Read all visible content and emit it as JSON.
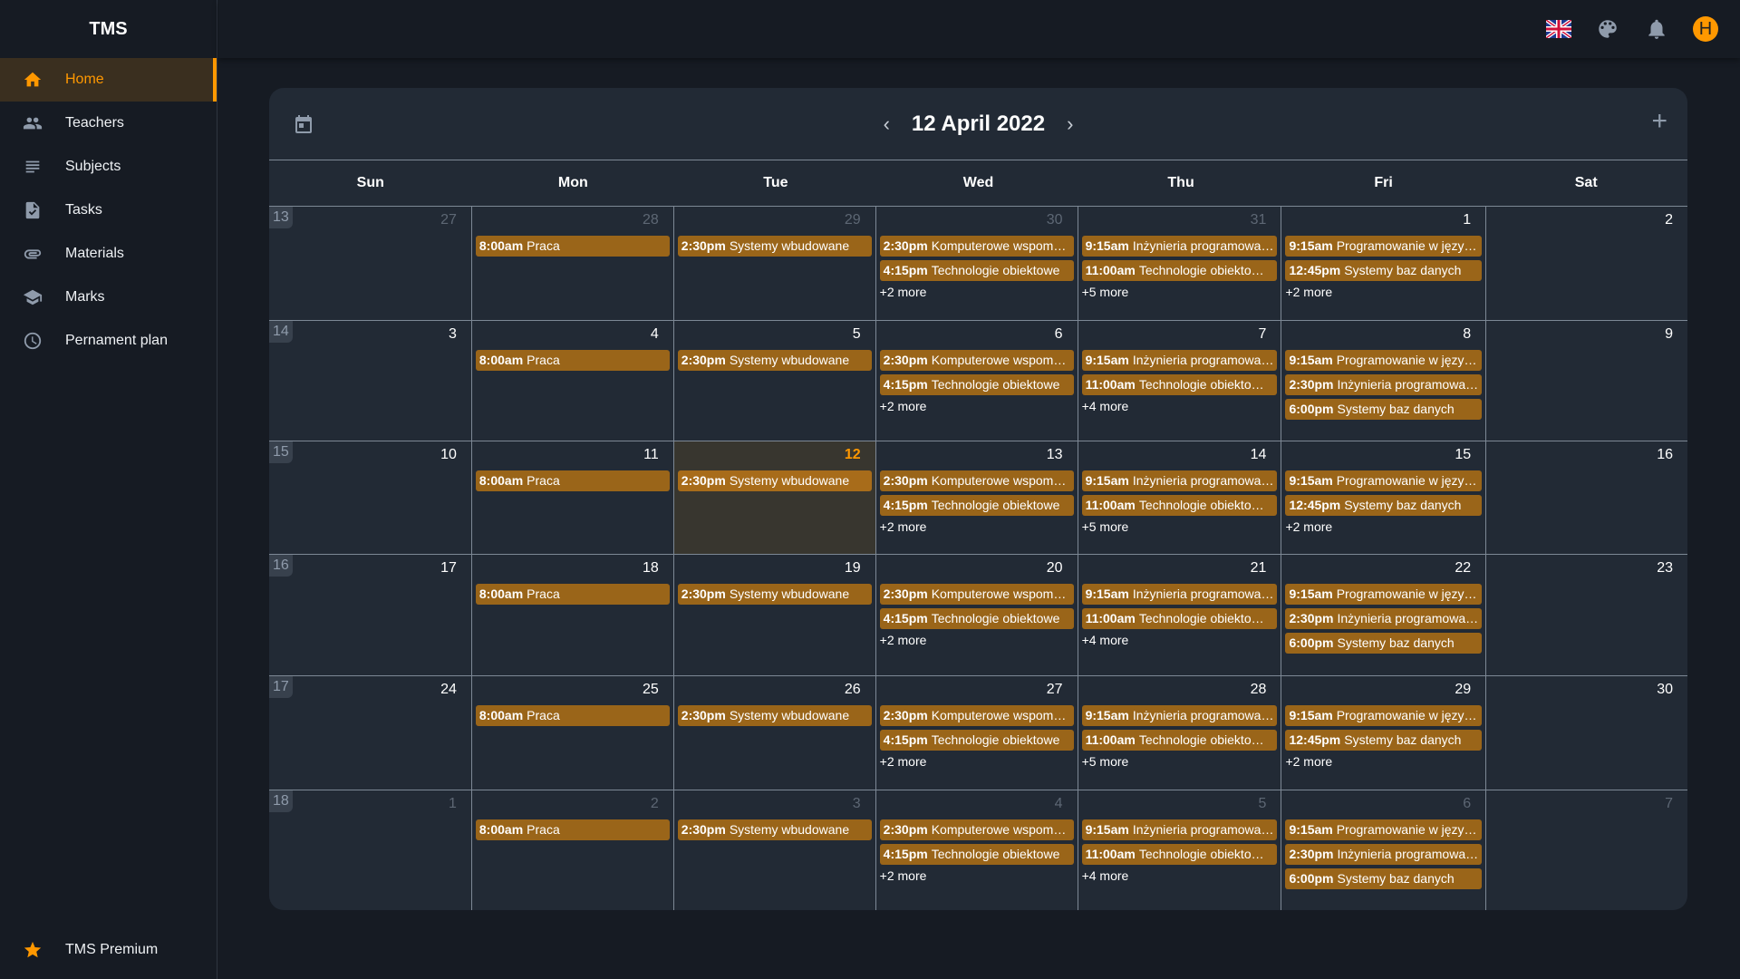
{
  "app": {
    "title": "TMS"
  },
  "sidebar": {
    "items": [
      {
        "label": "Home",
        "icon": "home-icon",
        "active": true
      },
      {
        "label": "Teachers",
        "icon": "people-icon"
      },
      {
        "label": "Subjects",
        "icon": "subject-lines-icon"
      },
      {
        "label": "Tasks",
        "icon": "task-file-icon"
      },
      {
        "label": "Materials",
        "icon": "paperclip-icon"
      },
      {
        "label": "Marks",
        "icon": "graduation-cap-icon"
      },
      {
        "label": "Pernament plan",
        "icon": "clock-icon"
      }
    ],
    "premium": {
      "label": "TMS Premium",
      "icon": "star-icon"
    }
  },
  "topbar": {
    "language": "EN",
    "avatar_initial": "H",
    "accent": "#ff9800"
  },
  "calendar": {
    "title": "12 April 2022",
    "weekdays": [
      "Sun",
      "Mon",
      "Tue",
      "Wed",
      "Thu",
      "Fri",
      "Sat"
    ],
    "event_color": "#9a6519",
    "weeks": [
      {
        "week": "13",
        "days": [
          {
            "date": "27",
            "muted": true,
            "events": []
          },
          {
            "date": "28",
            "muted": true,
            "events": [
              {
                "time": "8:00am",
                "title": "Praca"
              }
            ]
          },
          {
            "date": "29",
            "muted": true,
            "events": [
              {
                "time": "2:30pm",
                "title": "Systemy wbudowane"
              }
            ]
          },
          {
            "date": "30",
            "muted": true,
            "events": [
              {
                "time": "2:30pm",
                "title": "Komputerowe wspom…"
              },
              {
                "time": "4:15pm",
                "title": "Technologie obiektowe"
              }
            ],
            "more": "+2 more"
          },
          {
            "date": "31",
            "muted": true,
            "events": [
              {
                "time": "9:15am",
                "title": "Inżynieria programowa…"
              },
              {
                "time": "11:00am",
                "title": "Technologie obiekto…"
              }
            ],
            "more": "+5 more"
          },
          {
            "date": "1",
            "events": [
              {
                "time": "9:15am",
                "title": "Programowanie w języ…"
              },
              {
                "time": "12:45pm",
                "title": "Systemy baz danych"
              }
            ],
            "more": "+2 more"
          },
          {
            "date": "2",
            "events": []
          }
        ]
      },
      {
        "week": "14",
        "days": [
          {
            "date": "3",
            "events": []
          },
          {
            "date": "4",
            "events": [
              {
                "time": "8:00am",
                "title": "Praca"
              }
            ]
          },
          {
            "date": "5",
            "events": [
              {
                "time": "2:30pm",
                "title": "Systemy wbudowane"
              }
            ]
          },
          {
            "date": "6",
            "events": [
              {
                "time": "2:30pm",
                "title": "Komputerowe wspom…"
              },
              {
                "time": "4:15pm",
                "title": "Technologie obiektowe"
              }
            ],
            "more": "+2 more"
          },
          {
            "date": "7",
            "events": [
              {
                "time": "9:15am",
                "title": "Inżynieria programowa…"
              },
              {
                "time": "11:00am",
                "title": "Technologie obiekto…"
              }
            ],
            "more": "+4 more"
          },
          {
            "date": "8",
            "events": [
              {
                "time": "9:15am",
                "title": "Programowanie w języ…"
              },
              {
                "time": "2:30pm",
                "title": "Inżynieria programowa…"
              },
              {
                "time": "6:00pm",
                "title": "Systemy baz danych"
              }
            ]
          },
          {
            "date": "9",
            "events": []
          }
        ]
      },
      {
        "week": "15",
        "days": [
          {
            "date": "10",
            "events": []
          },
          {
            "date": "11",
            "events": [
              {
                "time": "8:00am",
                "title": "Praca"
              }
            ]
          },
          {
            "date": "12",
            "today": true,
            "events": [
              {
                "time": "2:30pm",
                "title": "Systemy wbudowane"
              }
            ]
          },
          {
            "date": "13",
            "events": [
              {
                "time": "2:30pm",
                "title": "Komputerowe wspom…"
              },
              {
                "time": "4:15pm",
                "title": "Technologie obiektowe"
              }
            ],
            "more": "+2 more"
          },
          {
            "date": "14",
            "events": [
              {
                "time": "9:15am",
                "title": "Inżynieria programowa…"
              },
              {
                "time": "11:00am",
                "title": "Technologie obiekto…"
              }
            ],
            "more": "+5 more"
          },
          {
            "date": "15",
            "events": [
              {
                "time": "9:15am",
                "title": "Programowanie w języ…"
              },
              {
                "time": "12:45pm",
                "title": "Systemy baz danych"
              }
            ],
            "more": "+2 more"
          },
          {
            "date": "16",
            "events": []
          }
        ]
      },
      {
        "week": "16",
        "days": [
          {
            "date": "17",
            "events": []
          },
          {
            "date": "18",
            "events": [
              {
                "time": "8:00am",
                "title": "Praca"
              }
            ]
          },
          {
            "date": "19",
            "events": [
              {
                "time": "2:30pm",
                "title": "Systemy wbudowane"
              }
            ]
          },
          {
            "date": "20",
            "events": [
              {
                "time": "2:30pm",
                "title": "Komputerowe wspom…"
              },
              {
                "time": "4:15pm",
                "title": "Technologie obiektowe"
              }
            ],
            "more": "+2 more"
          },
          {
            "date": "21",
            "events": [
              {
                "time": "9:15am",
                "title": "Inżynieria programowa…"
              },
              {
                "time": "11:00am",
                "title": "Technologie obiekto…"
              }
            ],
            "more": "+4 more"
          },
          {
            "date": "22",
            "events": [
              {
                "time": "9:15am",
                "title": "Programowanie w języ…"
              },
              {
                "time": "2:30pm",
                "title": "Inżynieria programowa…"
              },
              {
                "time": "6:00pm",
                "title": "Systemy baz danych"
              }
            ]
          },
          {
            "date": "23",
            "events": []
          }
        ]
      },
      {
        "week": "17",
        "days": [
          {
            "date": "24",
            "events": []
          },
          {
            "date": "25",
            "events": [
              {
                "time": "8:00am",
                "title": "Praca"
              }
            ]
          },
          {
            "date": "26",
            "events": [
              {
                "time": "2:30pm",
                "title": "Systemy wbudowane"
              }
            ]
          },
          {
            "date": "27",
            "events": [
              {
                "time": "2:30pm",
                "title": "Komputerowe wspom…"
              },
              {
                "time": "4:15pm",
                "title": "Technologie obiektowe"
              }
            ],
            "more": "+2 more"
          },
          {
            "date": "28",
            "events": [
              {
                "time": "9:15am",
                "title": "Inżynieria programowa…"
              },
              {
                "time": "11:00am",
                "title": "Technologie obiekto…"
              }
            ],
            "more": "+5 more"
          },
          {
            "date": "29",
            "events": [
              {
                "time": "9:15am",
                "title": "Programowanie w języ…"
              },
              {
                "time": "12:45pm",
                "title": "Systemy baz danych"
              }
            ],
            "more": "+2 more"
          },
          {
            "date": "30",
            "events": []
          }
        ]
      },
      {
        "week": "18",
        "days": [
          {
            "date": "1",
            "muted": true,
            "events": []
          },
          {
            "date": "2",
            "muted": true,
            "events": [
              {
                "time": "8:00am",
                "title": "Praca"
              }
            ]
          },
          {
            "date": "3",
            "muted": true,
            "events": [
              {
                "time": "2:30pm",
                "title": "Systemy wbudowane"
              }
            ]
          },
          {
            "date": "4",
            "muted": true,
            "events": [
              {
                "time": "2:30pm",
                "title": "Komputerowe wspom…"
              },
              {
                "time": "4:15pm",
                "title": "Technologie obiektowe"
              }
            ],
            "more": "+2 more"
          },
          {
            "date": "5",
            "muted": true,
            "events": [
              {
                "time": "9:15am",
                "title": "Inżynieria programowa…"
              },
              {
                "time": "11:00am",
                "title": "Technologie obiekto…"
              }
            ],
            "more": "+4 more"
          },
          {
            "date": "6",
            "muted": true,
            "events": [
              {
                "time": "9:15am",
                "title": "Programowanie w języ…"
              },
              {
                "time": "2:30pm",
                "title": "Inżynieria programowa…"
              },
              {
                "time": "6:00pm",
                "title": "Systemy baz danych"
              }
            ]
          },
          {
            "date": "7",
            "muted": true,
            "events": []
          }
        ]
      }
    ]
  }
}
